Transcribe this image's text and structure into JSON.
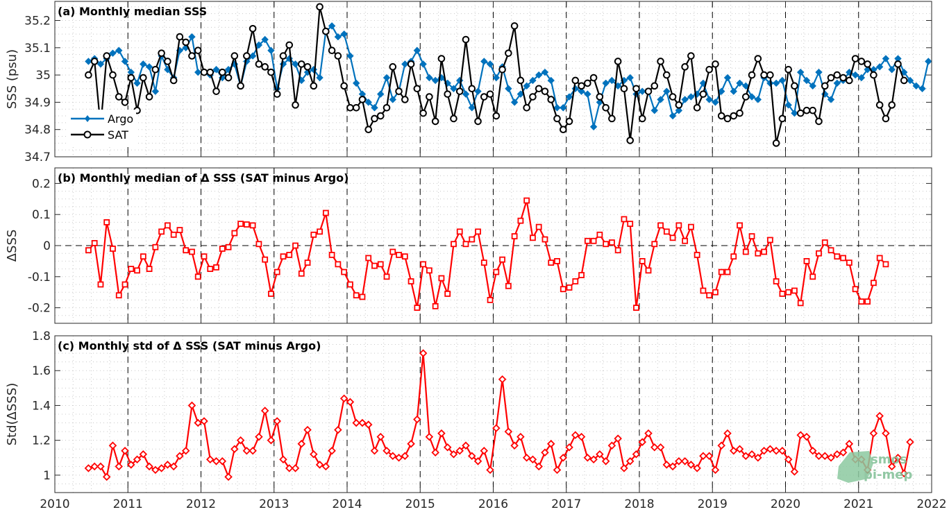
{
  "chart_data": [
    {
      "type": "line",
      "title": "(a) Monthly median SSS",
      "ylabel": "SSS (psu)",
      "ylim": [
        34.7,
        35.27
      ],
      "yticks": [
        34.7,
        34.8,
        34.9,
        35,
        35.1,
        35.2
      ],
      "ytick_labels": [
        "34.7",
        "34.8",
        "34.9",
        "35",
        "35.1",
        "35.2"
      ],
      "xlim": [
        2010,
        2022
      ],
      "grid": "dotted minor",
      "legend_placement": "lower-left",
      "series": [
        {
          "name": "Argo",
          "color": "#0072BD",
          "marker": "diamond",
          "start": 2010.46,
          "step": 0.0833,
          "values": [
            35.05,
            35.06,
            35.04,
            35.06,
            35.08,
            35.09,
            35.05,
            35.01,
            34.97,
            35.04,
            35.03,
            34.94,
            35.07,
            35.02,
            34.99,
            35.09,
            35.1,
            35.14,
            35.01,
            35.01,
            35.0,
            35.02,
            34.99,
            35.02,
            35.04,
            34.96,
            35.05,
            35.07,
            35.11,
            35.13,
            35.09,
            34.95,
            35.04,
            35.06,
            35.04,
            34.98,
            35.01,
            35.02,
            34.99,
            35.16,
            35.18,
            35.14,
            35.15,
            35.07,
            34.97,
            34.93,
            34.9,
            34.88,
            34.93,
            34.99,
            34.91,
            34.94,
            35.04,
            35.05,
            35.09,
            35.04,
            34.99,
            34.98,
            34.99,
            34.97,
            34.95,
            34.98,
            34.93,
            34.88,
            34.94,
            35.05,
            35.04,
            34.99,
            35.03,
            34.95,
            34.9,
            34.93,
            34.96,
            34.98,
            35.0,
            35.01,
            34.98,
            34.88,
            34.88,
            34.92,
            34.95,
            34.94,
            34.93,
            34.81,
            34.9,
            34.97,
            34.98,
            34.96,
            34.98,
            34.99,
            34.93,
            34.94,
            34.94,
            34.87,
            34.91,
            34.94,
            34.85,
            34.87,
            34.91,
            34.92,
            34.93,
            34.97,
            34.91,
            34.9,
            34.94,
            34.99,
            34.94,
            34.97,
            34.96,
            34.92,
            34.91,
            34.99,
            34.97,
            34.97,
            34.98,
            34.89,
            34.86,
            35.01,
            34.98,
            34.96,
            35.01,
            34.93,
            34.91,
            34.97,
            34.98,
            35.01,
            35.0,
            34.99,
            35.02,
            35.02,
            35.03,
            35.06,
            35.02,
            35.06,
            35.01,
            34.98,
            34.96,
            34.95,
            35.05
          ]
        },
        {
          "name": "SAT",
          "color": "#000000",
          "marker": "circle",
          "start": 2010.46,
          "step": 0.0833,
          "values": [
            35.0,
            35.05,
            34.81,
            35.07,
            35.0,
            34.92,
            34.9,
            34.99,
            34.87,
            34.99,
            34.92,
            35.02,
            35.08,
            35.05,
            34.98,
            35.14,
            35.12,
            35.07,
            35.09,
            35.01,
            35.01,
            34.94,
            35.01,
            34.99,
            35.07,
            34.96,
            35.07,
            35.17,
            35.04,
            35.03,
            35.01,
            34.93,
            35.07,
            35.11,
            34.89,
            35.04,
            35.03,
            34.96,
            35.25,
            35.16,
            35.09,
            35.07,
            34.96,
            34.88,
            34.88,
            34.91,
            34.8,
            34.84,
            34.85,
            34.88,
            35.03,
            34.94,
            34.91,
            35.04,
            34.95,
            34.86,
            34.92,
            34.83,
            35.06,
            34.93,
            34.84,
            34.94,
            35.13,
            34.95,
            34.83,
            34.92,
            34.93,
            34.85,
            35.02,
            35.08,
            35.18,
            34.98,
            34.88,
            34.92,
            34.95,
            34.94,
            34.91,
            34.84,
            34.8,
            34.83,
            34.98,
            34.96,
            34.97,
            34.99,
            34.92,
            34.88,
            34.84,
            35.05,
            34.95,
            34.76,
            34.95,
            34.84,
            34.94,
            34.96,
            35.05,
            35.0,
            34.92,
            34.89,
            35.03,
            35.07,
            34.88,
            34.93,
            35.02,
            35.04,
            34.85,
            34.84,
            34.85,
            34.86,
            34.92,
            35.0,
            35.06,
            35.0,
            35.0,
            34.75,
            34.84,
            35.02,
            34.96,
            34.86,
            34.87,
            34.87,
            34.83,
            34.96,
            34.99,
            35.0,
            34.99,
            34.98,
            35.06,
            35.05,
            35.04,
            35.0,
            34.89,
            34.84,
            34.89,
            35.04,
            34.98
          ]
        }
      ]
    },
    {
      "type": "line",
      "title": "(b) Monthly median of Δ SSS (SAT minus Argo)",
      "ylabel": "ΔSSS",
      "ylim": [
        -0.25,
        0.25
      ],
      "yticks": [
        -0.2,
        -0.1,
        0,
        0.1,
        0.2
      ],
      "ytick_labels": [
        "-0.2",
        "-0.1",
        "0",
        "0.1",
        "0.2"
      ],
      "xlim": [
        2010,
        2022
      ],
      "zero_line": true,
      "grid": "dotted minor",
      "series": [
        {
          "color": "#ff0000",
          "marker": "square",
          "start": 2010.46,
          "step": 0.0833,
          "values": [
            -0.015,
            0.008,
            -0.125,
            0.075,
            -0.01,
            -0.16,
            -0.125,
            -0.075,
            -0.08,
            -0.035,
            -0.075,
            -0.005,
            0.045,
            0.065,
            0.035,
            0.05,
            -0.015,
            -0.02,
            -0.1,
            -0.035,
            -0.075,
            -0.07,
            -0.01,
            -0.005,
            0.04,
            0.07,
            0.068,
            0.065,
            0.005,
            -0.045,
            -0.155,
            -0.085,
            -0.035,
            -0.03,
            0.0,
            -0.09,
            -0.055,
            0.035,
            0.045,
            0.105,
            -0.03,
            -0.06,
            -0.085,
            -0.125,
            -0.16,
            -0.165,
            -0.04,
            -0.065,
            -0.06,
            -0.1,
            -0.02,
            -0.03,
            -0.035,
            -0.115,
            -0.2,
            -0.06,
            -0.08,
            -0.195,
            -0.105,
            -0.155,
            0.005,
            0.045,
            0.005,
            0.02,
            0.045,
            -0.055,
            -0.175,
            -0.085,
            -0.045,
            -0.13,
            0.03,
            0.08,
            0.145,
            0.025,
            0.06,
            0.02,
            -0.055,
            -0.05,
            -0.14,
            -0.135,
            -0.115,
            -0.095,
            0.015,
            0.015,
            0.035,
            0.005,
            0.01,
            -0.015,
            0.085,
            0.07,
            -0.2,
            -0.05,
            -0.08,
            0.005,
            0.065,
            0.045,
            0.025,
            0.065,
            0.015,
            0.06,
            -0.03,
            -0.145,
            -0.16,
            -0.15,
            -0.085,
            -0.085,
            -0.035,
            0.065,
            -0.02,
            0.03,
            -0.025,
            -0.02,
            0.018,
            -0.115,
            -0.155,
            -0.15,
            -0.145,
            -0.185,
            -0.05,
            -0.1,
            -0.025,
            0.01,
            -0.015,
            -0.035,
            -0.04,
            -0.055,
            -0.14,
            -0.18,
            -0.18,
            -0.12,
            -0.04,
            -0.06
          ]
        }
      ]
    },
    {
      "type": "line",
      "title": "(c) Monthly std of Δ SSS (SAT minus Argo)",
      "ylabel": "Std(ΔSSS)",
      "ylim": [
        0.9,
        1.8
      ],
      "yticks": [
        1,
        1.2,
        1.4,
        1.6,
        1.8
      ],
      "ytick_labels": [
        "1",
        "1.2",
        "1.4",
        "1.6",
        "1.8"
      ],
      "xlim": [
        2010,
        2022
      ],
      "xticks": [
        2010,
        2011,
        2012,
        2013,
        2014,
        2015,
        2016,
        2017,
        2018,
        2019,
        2020,
        2021,
        2022
      ],
      "xtick_labels": [
        "2010",
        "2011",
        "2012",
        "2013",
        "2014",
        "2015",
        "2016",
        "2017",
        "2018",
        "2019",
        "2020",
        "2021",
        "2022"
      ],
      "grid": "dotted minor",
      "series": [
        {
          "color": "#ff0000",
          "marker": "diamond",
          "start": 2010.46,
          "step": 0.0833,
          "values": [
            1.04,
            1.05,
            1.05,
            0.99,
            1.17,
            1.05,
            1.14,
            1.06,
            1.09,
            1.12,
            1.05,
            1.03,
            1.04,
            1.06,
            1.05,
            1.11,
            1.14,
            1.4,
            1.3,
            1.31,
            1.09,
            1.08,
            1.08,
            0.99,
            1.15,
            1.2,
            1.14,
            1.14,
            1.22,
            1.37,
            1.2,
            1.31,
            1.09,
            1.04,
            1.04,
            1.18,
            1.26,
            1.12,
            1.06,
            1.05,
            1.14,
            1.26,
            1.44,
            1.42,
            1.3,
            1.3,
            1.29,
            1.14,
            1.22,
            1.14,
            1.11,
            1.1,
            1.11,
            1.18,
            1.32,
            1.7,
            1.22,
            1.13,
            1.24,
            1.16,
            1.12,
            1.14,
            1.17,
            1.11,
            1.08,
            1.14,
            1.03,
            1.27,
            1.55,
            1.25,
            1.17,
            1.22,
            1.1,
            1.09,
            1.05,
            1.13,
            1.18,
            1.03,
            1.1,
            1.16,
            1.23,
            1.22,
            1.1,
            1.09,
            1.12,
            1.08,
            1.17,
            1.21,
            1.04,
            1.08,
            1.12,
            1.19,
            1.24,
            1.16,
            1.16,
            1.06,
            1.05,
            1.08,
            1.08,
            1.06,
            1.04,
            1.11,
            1.11,
            1.03,
            1.17,
            1.24,
            1.14,
            1.15,
            1.11,
            1.12,
            1.1,
            1.14,
            1.15,
            1.14,
            1.14,
            1.09,
            1.02,
            1.23,
            1.22,
            1.14,
            1.11,
            1.11,
            1.1,
            1.12,
            1.13,
            1.18,
            1.09,
            1.09,
            1.03,
            1.24,
            1.34,
            1.24,
            1.05,
            1.1,
            1.01,
            1.19
          ]
        }
      ]
    }
  ],
  "legend": {
    "argo": "Argo",
    "sat": "SAT"
  },
  "watermark": {
    "line1": "smos",
    "line2": "pi-mep"
  }
}
